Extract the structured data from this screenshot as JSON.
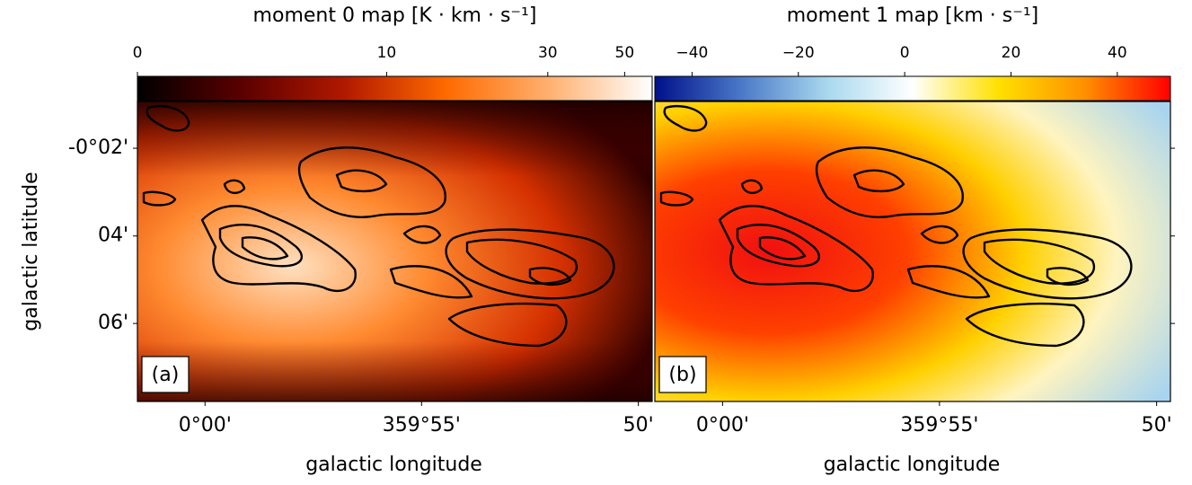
{
  "chart_data": [
    {
      "type": "map",
      "title": "moment 0 map [K · km · s⁻¹]",
      "colorbar": {
        "clim": [
          0,
          60
        ],
        "scale": "asinh",
        "ticks": [
          0,
          10,
          30,
          50
        ],
        "colormap": [
          "#000000",
          "#5a0000",
          "#b01800",
          "#ff6a00",
          "#ffb070",
          "#ffffff"
        ]
      },
      "xlabel": "galactic longitude",
      "ylabel": "galactic latitude",
      "xlim": [
        360.026,
        359.828
      ],
      "xticks": [
        {
          "value": 360,
          "label": "0°00'"
        },
        {
          "value": 359.9167,
          "label": "359°55'"
        },
        {
          "value": 359.8333,
          "label": "50'"
        }
      ],
      "ylim": [
        -0.1297,
        -0.0155
      ],
      "yticks": [
        {
          "value": -0.0333,
          "label": "-0°02'"
        },
        {
          "value": -0.0667,
          "label": "04'"
        },
        {
          "value": -0.1,
          "label": "06'"
        }
      ],
      "panel_label": "(a)"
    },
    {
      "type": "map",
      "title": "moment 1 map [km · s⁻¹]",
      "colorbar": {
        "clim": [
          -47,
          50
        ],
        "scale": "linear",
        "ticks": [
          {
            "value": -40,
            "label": "−40"
          },
          {
            "value": -20,
            "label": "−20"
          },
          0,
          20,
          40
        ],
        "colormap": [
          "#00108a",
          "#4a78c8",
          "#a8d8ee",
          "#ffffff",
          "#ffe000",
          "#ff9000",
          "#ff0000"
        ]
      },
      "xlabel": "galactic longitude",
      "xlim": [
        360.026,
        359.828
      ],
      "xticks": [
        {
          "value": 360,
          "label": "0°00'"
        },
        {
          "value": 359.9167,
          "label": "359°55'"
        },
        {
          "value": 359.8333,
          "label": "50'"
        }
      ],
      "ylim": [
        -0.1297,
        -0.0155
      ],
      "yticks": [
        -0.0333,
        -0.0667,
        -0.1
      ],
      "panel_label": "(b)"
    }
  ]
}
